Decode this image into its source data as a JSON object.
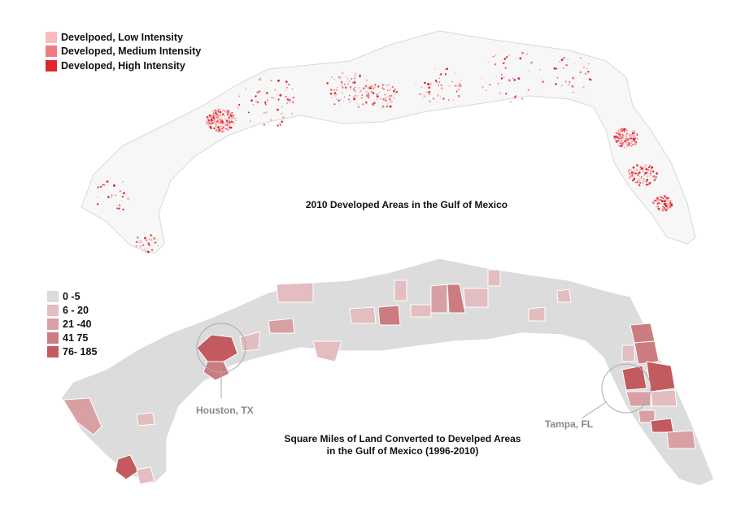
{
  "top_map": {
    "title": "2010 Developed Areas in the Gulf of Mexico",
    "legend": [
      {
        "label": "Develpoed, Low Intensity",
        "color": "#f7bcc0"
      },
      {
        "label": "Developed, Medium Intensity",
        "color": "#f07a80"
      },
      {
        "label": "Developed, High Intensity",
        "color": "#e0262c"
      }
    ]
  },
  "bottom_map": {
    "title_line1": "Square Miles of Land Converted to Develped Areas",
    "title_line2": "in the Gulf of Mexico (1996-2010)",
    "legend": [
      {
        "label": "0 -5",
        "color": "#dcdcdc"
      },
      {
        "label": "6 - 20",
        "color": "#e3bdc0"
      },
      {
        "label": "21 -40",
        "color": "#d9a0a4"
      },
      {
        "label": "41 75",
        "color": "#cc7b80"
      },
      {
        "label": "76- 185",
        "color": "#c35a60"
      }
    ],
    "callouts": [
      {
        "label": "Houston, TX"
      },
      {
        "label": "Tampa, FL"
      }
    ]
  }
}
